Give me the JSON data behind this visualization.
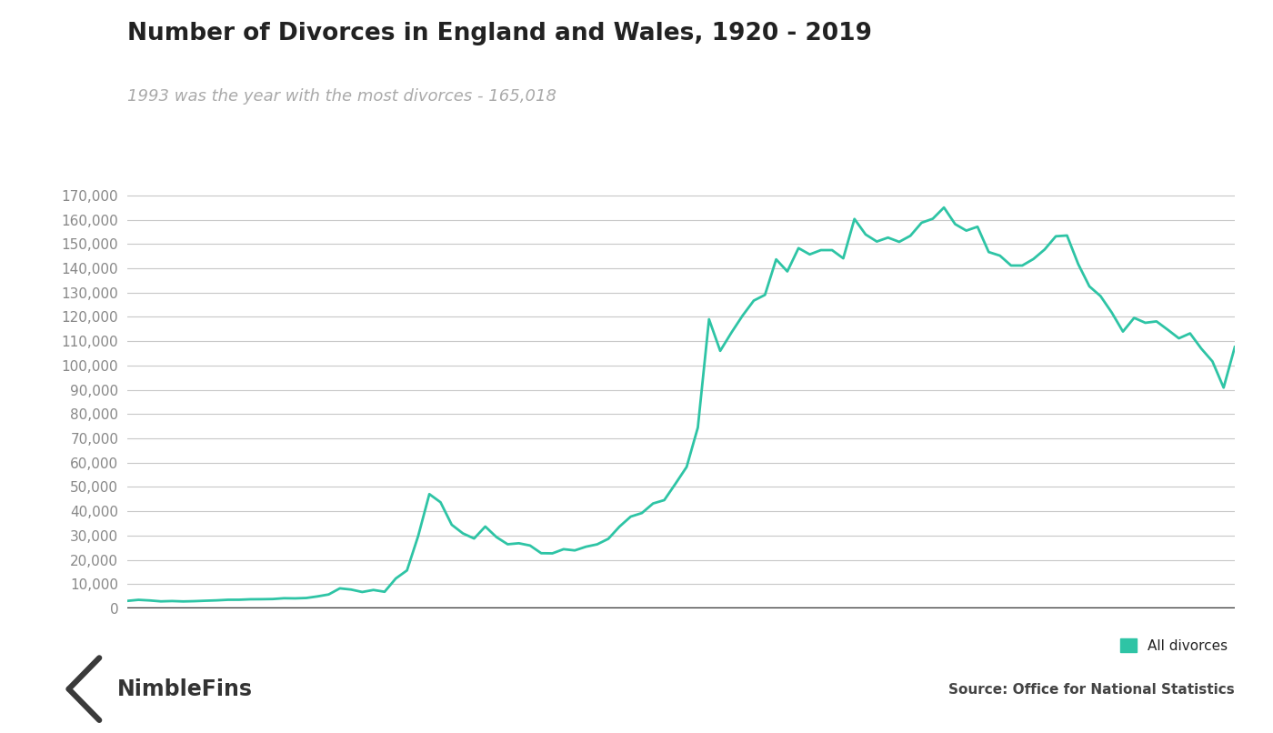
{
  "title": "Number of Divorces in England and Wales, 1920 - 2019",
  "subtitle": "1993 was the year with the most divorces - 165,018",
  "source": "Source: Office for National Statistics",
  "legend_label": "All divorces",
  "line_color": "#2ec4a5",
  "background_color": "#ffffff",
  "grid_color": "#c8c8c8",
  "title_color": "#222222",
  "subtitle_color": "#aaaaaa",
  "axis_line_color": "#333333",
  "tick_color": "#888888",
  "source_color": "#444444",
  "years": [
    1920,
    1921,
    1922,
    1923,
    1924,
    1925,
    1926,
    1927,
    1928,
    1929,
    1930,
    1931,
    1932,
    1933,
    1934,
    1935,
    1936,
    1937,
    1938,
    1939,
    1940,
    1941,
    1942,
    1943,
    1944,
    1945,
    1946,
    1947,
    1948,
    1949,
    1950,
    1951,
    1952,
    1953,
    1954,
    1955,
    1956,
    1957,
    1958,
    1959,
    1960,
    1961,
    1962,
    1963,
    1964,
    1965,
    1966,
    1967,
    1968,
    1969,
    1970,
    1971,
    1972,
    1973,
    1974,
    1975,
    1976,
    1977,
    1978,
    1979,
    1980,
    1981,
    1982,
    1983,
    1984,
    1985,
    1986,
    1987,
    1988,
    1989,
    1990,
    1991,
    1992,
    1993,
    1994,
    1995,
    1996,
    1997,
    1998,
    1999,
    2000,
    2001,
    2002,
    2003,
    2004,
    2005,
    2006,
    2007,
    2008,
    2009,
    2010,
    2011,
    2012,
    2013,
    2014,
    2015,
    2016,
    2017,
    2018,
    2019
  ],
  "values": [
    3090,
    3522,
    3270,
    2894,
    3024,
    2869,
    2979,
    3154,
    3310,
    3549,
    3563,
    3753,
    3781,
    3854,
    4180,
    4124,
    4280,
    4936,
    5738,
    8248,
    7755,
    6748,
    7582,
    6841,
    12314,
    15634,
    29769,
    47041,
    43683,
    34427,
    30870,
    28767,
    33695,
    29335,
    26395,
    26816,
    25881,
    22716,
    22654,
    24370,
    23868,
    25394,
    26366,
    28649,
    33679,
    37785,
    39253,
    43194,
    44567,
    51310,
    58239,
    74437,
    119025,
    106003,
    113502,
    120522,
    126694,
    129053,
    143667,
    138706,
    148301,
    145713,
    147479,
    147478,
    144084,
    160300,
    153903,
    151007,
    152633,
    150872,
    153386,
    158745,
    160385,
    165018,
    158175,
    155499,
    157107,
    146689,
    145214,
    141135,
    141135,
    143818,
    147735,
    153176,
    153490,
    141750,
    132562,
    128534,
    121779,
    113949,
    119589,
    117558,
    118140,
    114720,
    111169,
    113201,
    106959,
    101669,
    90871,
    107599
  ],
  "ylim": [
    0,
    175000
  ],
  "yticks": [
    0,
    10000,
    20000,
    30000,
    40000,
    50000,
    60000,
    70000,
    80000,
    90000,
    100000,
    110000,
    120000,
    130000,
    140000,
    150000,
    160000,
    170000
  ],
  "xlim": [
    1920,
    2019
  ]
}
